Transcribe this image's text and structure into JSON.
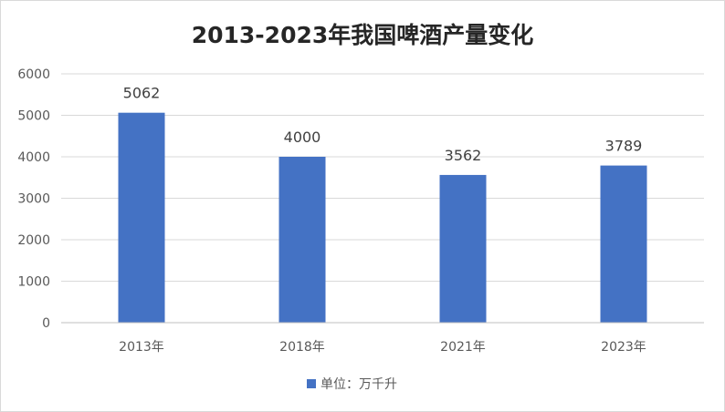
{
  "chart_data": {
    "type": "bar",
    "title": "2013-2023年我国啤酒产量变化",
    "categories": [
      "2013年",
      "2018年",
      "2021年",
      "2023年"
    ],
    "series": [
      {
        "name": "单位：万千升",
        "values": [
          5062,
          4000,
          3562,
          3789
        ]
      }
    ],
    "ylim": [
      0,
      6000
    ],
    "yticks": [
      0,
      1000,
      2000,
      3000,
      4000,
      5000,
      6000
    ],
    "xlabel": "",
    "ylabel": "",
    "grid": true,
    "legend": "bottom",
    "bar_color": "#4472c4",
    "grid_color": "#d9d9d9"
  }
}
